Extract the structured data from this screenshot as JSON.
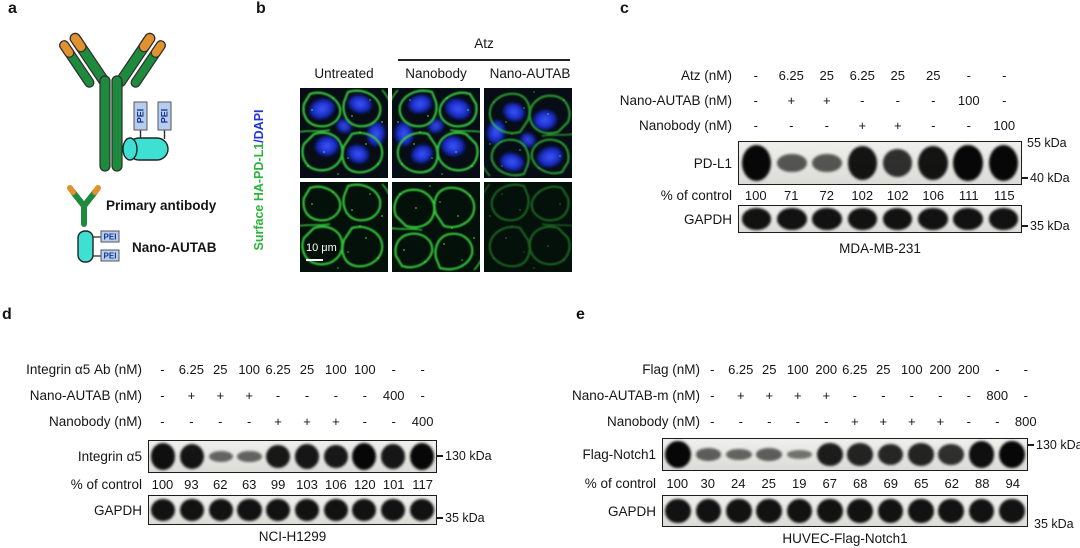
{
  "figure": {
    "type": "western-blot-and-microscopy-figure",
    "colors": {
      "antibody_green": "#1e8a3e",
      "antibody_orange": "#e0922f",
      "nanobody_cyan": "#3fe0d4",
      "pei_fill": "#b6cdf0",
      "pei_text": "#16338f",
      "stain_green": "#38cf3d",
      "stain_blue": "#2236d8"
    }
  },
  "panels": {
    "a": {
      "label": "a",
      "pei_tag": "PEI",
      "legend": [
        {
          "label": "Primary antibody"
        },
        {
          "label": "Nano-AUTAB"
        }
      ]
    },
    "b": {
      "label": "b",
      "group_label": "Atz",
      "columns": [
        "Untreated",
        "Nanobody",
        "Nano-AUTAB"
      ],
      "row_label_green": "Surface HA-PD-L1",
      "row_label_blue": "/DAPI",
      "scale_bar": "10 μm"
    },
    "c": {
      "label": "c",
      "dose_rows": [
        {
          "label": "Atz (nM)",
          "values": [
            "-",
            "6.25",
            "25",
            "6.25",
            "25",
            "25",
            "-",
            "-"
          ]
        },
        {
          "label": "Nano-AUTAB (nM)",
          "values": [
            "-",
            "+",
            "+",
            "-",
            "-",
            "-",
            "100",
            "-"
          ]
        },
        {
          "label": "Nanobody (nM)",
          "values": [
            "-",
            "-",
            "-",
            "+",
            "+",
            "-",
            "-",
            "100"
          ]
        }
      ],
      "blot1": {
        "label": "PD-L1",
        "marker_top": "55 kDa",
        "marker_bottom": "40 kDa",
        "bands": [
          1.0,
          0.5,
          0.5,
          0.92,
          0.75,
          0.92,
          1.0,
          1.0
        ]
      },
      "percent": {
        "label": "% of control",
        "values": [
          "100",
          "71",
          "72",
          "102",
          "102",
          "106",
          "111",
          "115"
        ]
      },
      "blot2": {
        "label": "GAPDH",
        "marker_bottom": "35 kDa",
        "bands": [
          0.93,
          0.93,
          0.93,
          0.93,
          0.93,
          0.93,
          0.93,
          0.93
        ]
      },
      "cell_line": "MDA-MB-231"
    },
    "d": {
      "label": "d",
      "dose_rows": [
        {
          "label": "Integrin α5 Ab (nM)",
          "values": [
            "-",
            "6.25",
            "25",
            "100",
            "6.25",
            "25",
            "100",
            "100",
            "-",
            "-"
          ]
        },
        {
          "label": "Nano-AUTAB (nM)",
          "values": [
            "-",
            "+",
            "+",
            "+",
            "-",
            "-",
            "-",
            "-",
            "400",
            "-"
          ]
        },
        {
          "label": "Nanobody (nM)",
          "values": [
            "-",
            "-",
            "-",
            "-",
            "+",
            "+",
            "+",
            "-",
            "-",
            "400"
          ]
        }
      ],
      "blot1": {
        "label": "Integrin α5",
        "marker_mid": "130 kDa",
        "bands": [
          0.95,
          0.92,
          0.4,
          0.42,
          0.88,
          0.9,
          0.88,
          1.0,
          0.9,
          1.0
        ]
      },
      "percent": {
        "label": "% of control",
        "values": [
          "100",
          "93",
          "62",
          "63",
          "99",
          "103",
          "106",
          "120",
          "101",
          "117"
        ]
      },
      "blot2": {
        "label": "GAPDH",
        "marker_bottom": "35 kDa",
        "bands": [
          0.93,
          0.93,
          0.93,
          0.93,
          0.93,
          0.93,
          0.93,
          0.93,
          0.93,
          0.93
        ]
      },
      "cell_line": "NCI-H1299"
    },
    "e": {
      "label": "e",
      "dose_rows": [
        {
          "label": "Flag (nM)",
          "values": [
            "-",
            "6.25",
            "25",
            "100",
            "200",
            "6.25",
            "25",
            "100",
            "200",
            "200",
            "-",
            "-"
          ]
        },
        {
          "label": "Nano-AUTAB-m (nM)",
          "values": [
            "-",
            "+",
            "+",
            "+",
            "+",
            "-",
            "-",
            "-",
            "-",
            "-",
            "800",
            "-"
          ]
        },
        {
          "label": "Nanobody (nM)",
          "values": [
            "-",
            "-",
            "-",
            "-",
            "-",
            "+",
            "+",
            "+",
            "+",
            "-",
            "-",
            "800"
          ]
        }
      ],
      "blot1": {
        "label": "Flag-Notch1",
        "marker_top": "130 kDa",
        "bands": [
          1.0,
          0.45,
          0.42,
          0.45,
          0.32,
          0.85,
          0.82,
          0.8,
          0.82,
          0.75,
          0.95,
          1.0
        ]
      },
      "percent": {
        "label": "% of control",
        "values": [
          "100",
          "30",
          "24",
          "25",
          "19",
          "67",
          "68",
          "69",
          "65",
          "62",
          "88",
          "94"
        ]
      },
      "blot2": {
        "label": "GAPDH",
        "marker_bottom": "35 kDa",
        "bands": [
          0.93,
          0.93,
          0.93,
          0.93,
          0.93,
          0.93,
          0.93,
          0.93,
          0.93,
          0.93,
          0.93,
          0.93
        ]
      },
      "cell_line": "HUVEC-Flag-Notch1"
    }
  }
}
